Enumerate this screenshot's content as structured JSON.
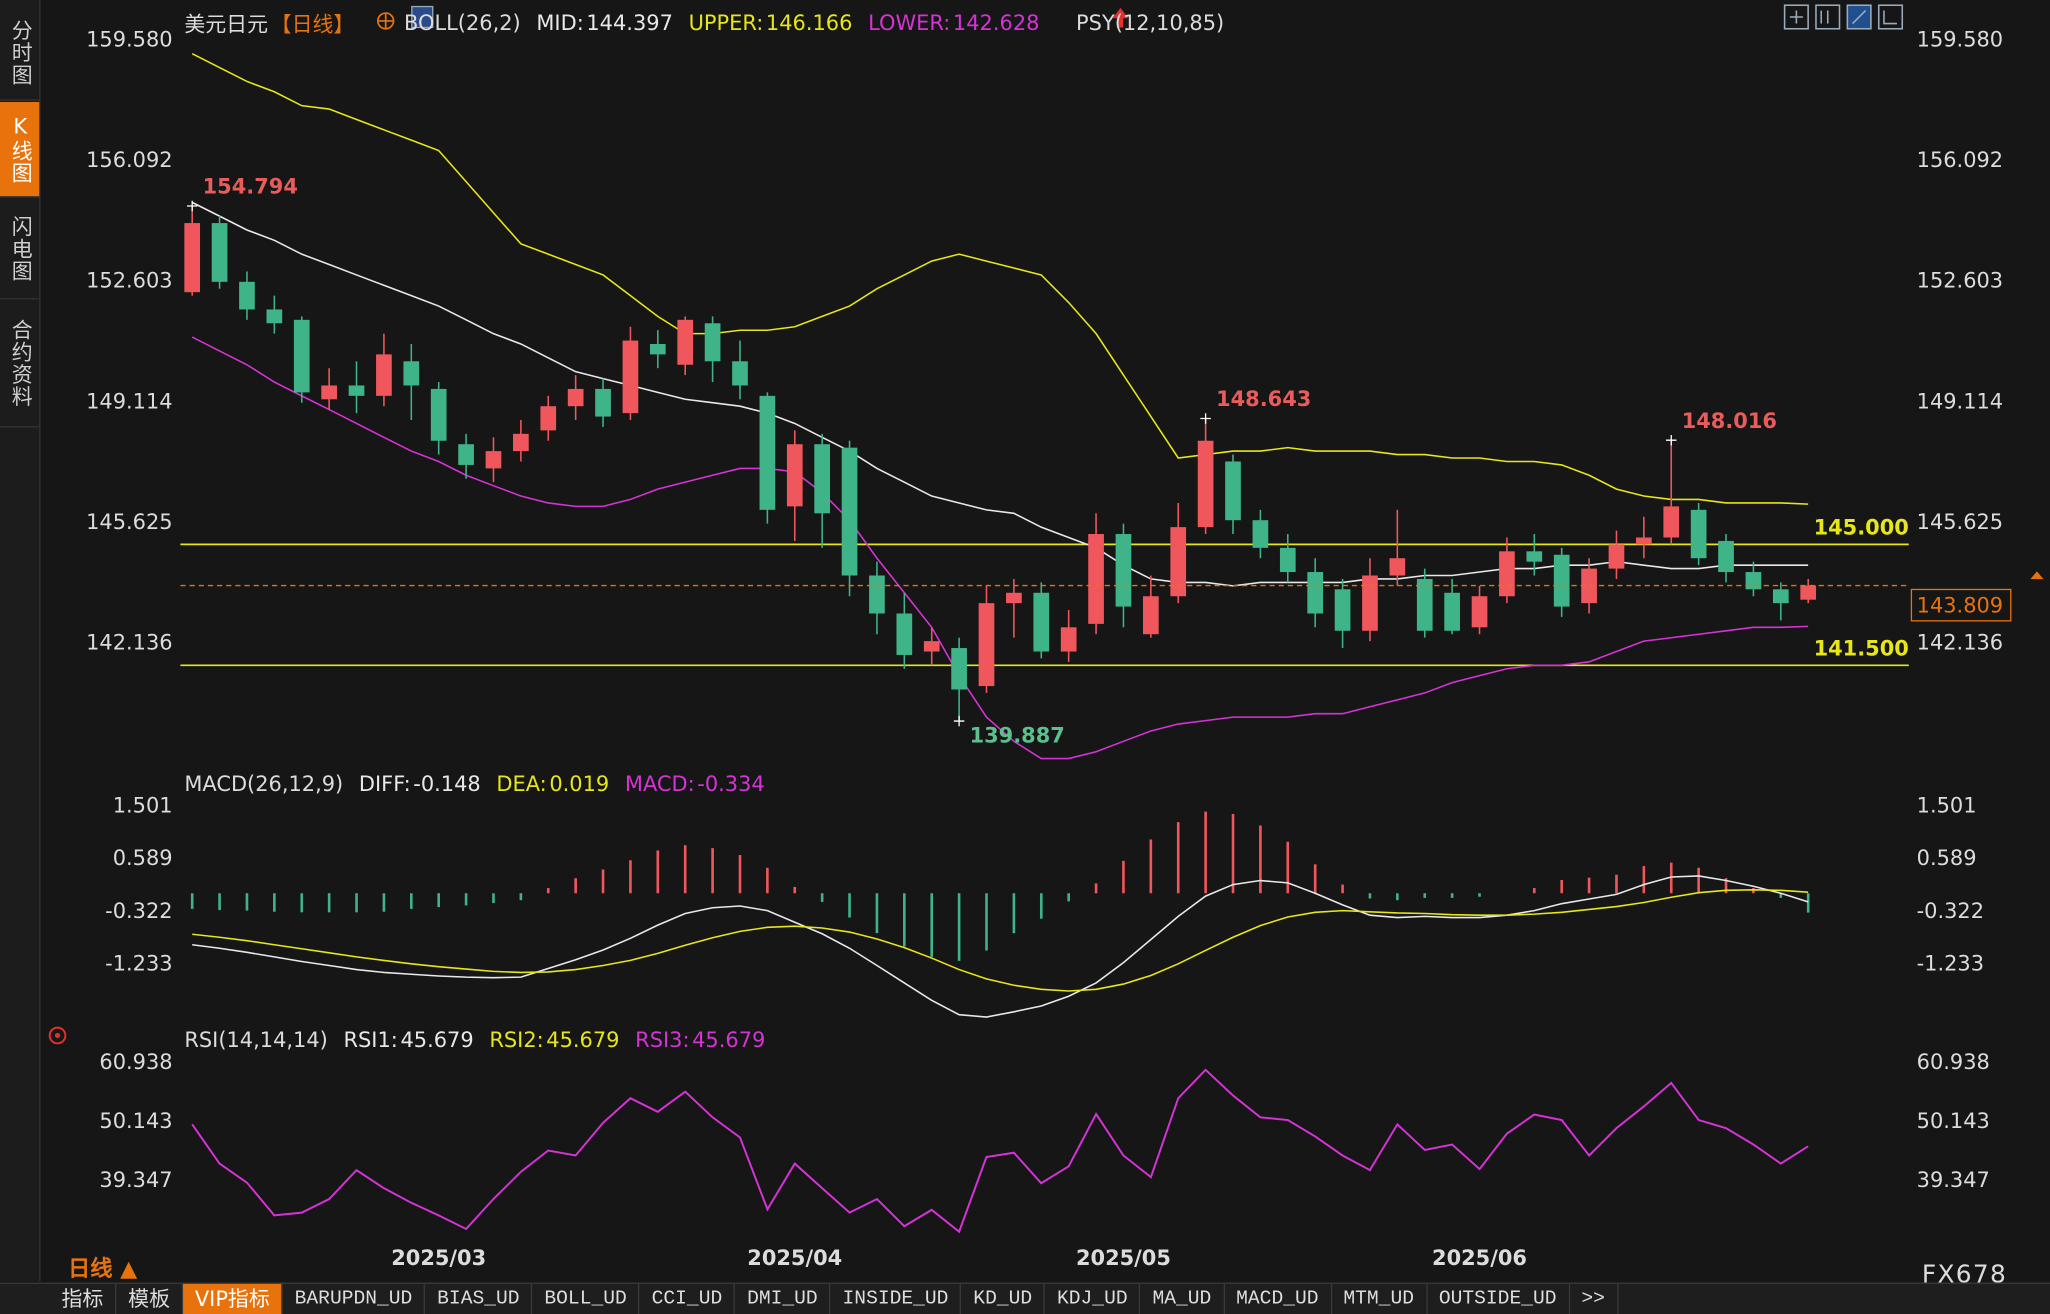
{
  "header": {
    "symbol": "美元日元",
    "period": "【日线】",
    "extra": "PSY(12,10,85)"
  },
  "sidebar": [
    "分时图",
    "K线图",
    "闪电图",
    "合约资料"
  ],
  "footer": {
    "period": "日线 ▲",
    "brand": "FX678",
    "tabs": [
      "指标",
      "模板",
      "VIP指标",
      "BARUPDN_UD",
      "BIAS_UD",
      "BOLL_UD",
      "CCI_UD",
      "DMI_UD",
      "INSIDE_UD",
      "KD_UD",
      "KDJ_UD",
      "MA_UD",
      "MACD_UD",
      "MTM_UD",
      "OUTSIDE_UD",
      ">>"
    ]
  },
  "chart_data": [
    {
      "type": "candlestick",
      "title": "BOLL(26,2)",
      "up_color": "#f0575c",
      "down_color": "#3fb489",
      "categories": [
        null,
        null,
        null,
        null,
        null,
        null,
        null,
        null,
        null,
        "2025/03",
        null,
        null,
        null,
        null,
        null,
        null,
        null,
        null,
        null,
        null,
        null,
        null,
        "2025/04",
        null,
        null,
        null,
        null,
        null,
        null,
        null,
        null,
        null,
        null,
        null,
        "2025/05",
        null,
        null,
        null,
        null,
        null,
        null,
        null,
        null,
        null,
        null,
        null,
        null,
        "2025/06",
        null,
        null,
        null,
        null,
        null,
        null,
        null,
        null,
        null,
        null,
        null,
        null
      ],
      "open": [
        152.3,
        154.3,
        152.6,
        151.8,
        151.5,
        149.2,
        149.6,
        149.3,
        150.3,
        149.5,
        147.9,
        147.2,
        147.7,
        148.3,
        149.0,
        149.5,
        148.8,
        150.8,
        150.2,
        151.4,
        150.3,
        149.3,
        146.1,
        147.9,
        147.8,
        144.1,
        143.0,
        141.9,
        142.0,
        140.9,
        143.3,
        143.6,
        141.9,
        142.7,
        145.3,
        142.4,
        143.5,
        145.5,
        147.4,
        145.7,
        144.9,
        144.2,
        143.7,
        142.5,
        144.1,
        144.0,
        143.6,
        142.6,
        143.5,
        144.8,
        144.7,
        143.3,
        144.3,
        145.0,
        145.2,
        146.0,
        145.1,
        144.2,
        143.7,
        143.4
      ],
      "high": [
        154.794,
        154.5,
        152.9,
        152.2,
        151.6,
        150.1,
        150.3,
        151.1,
        150.8,
        149.7,
        148.2,
        148.1,
        148.6,
        149.3,
        149.9,
        149.8,
        151.3,
        151.2,
        151.6,
        151.6,
        150.9,
        149.4,
        148.3,
        148.2,
        148.0,
        144.5,
        143.6,
        142.6,
        142.3,
        143.8,
        144.0,
        143.9,
        143.1,
        145.9,
        145.6,
        144.1,
        146.2,
        148.643,
        147.6,
        146.0,
        145.3,
        144.6,
        144.0,
        144.6,
        146.0,
        144.3,
        144.0,
        143.8,
        145.2,
        145.3,
        144.9,
        144.6,
        145.4,
        145.8,
        148.016,
        146.2,
        145.3,
        144.5,
        143.9,
        144.0
      ],
      "low": [
        152.2,
        152.4,
        151.5,
        151.1,
        149.1,
        148.9,
        148.8,
        149.0,
        148.6,
        147.6,
        146.9,
        146.8,
        147.4,
        148.0,
        148.6,
        148.4,
        148.6,
        150.1,
        149.9,
        149.7,
        149.2,
        145.6,
        145.1,
        144.9,
        143.5,
        142.4,
        141.4,
        141.5,
        139.887,
        140.7,
        142.3,
        141.7,
        141.6,
        142.4,
        142.6,
        142.3,
        143.3,
        145.3,
        145.3,
        144.6,
        143.9,
        142.6,
        142.0,
        142.2,
        143.8,
        142.3,
        142.4,
        142.4,
        143.3,
        144.1,
        142.9,
        143.0,
        144.0,
        144.6,
        145.0,
        144.4,
        143.9,
        143.5,
        142.8,
        143.3
      ],
      "close": [
        154.3,
        152.6,
        151.8,
        151.4,
        149.4,
        149.6,
        149.3,
        150.5,
        149.6,
        148.0,
        147.3,
        147.7,
        148.2,
        149.0,
        149.5,
        148.7,
        150.9,
        150.5,
        151.5,
        150.3,
        149.6,
        146.0,
        147.9,
        145.9,
        144.1,
        143.0,
        141.8,
        142.2,
        140.8,
        143.3,
        143.6,
        141.9,
        142.6,
        145.3,
        143.2,
        143.5,
        145.5,
        148.0,
        145.7,
        144.9,
        144.2,
        143.0,
        142.5,
        144.1,
        144.6,
        142.5,
        142.5,
        143.5,
        144.8,
        144.5,
        143.2,
        144.3,
        145.0,
        145.2,
        146.1,
        144.6,
        144.2,
        143.7,
        143.3,
        143.809
      ],
      "series": [
        {
          "name": "MID:",
          "color": "#e8e8e8",
          "values": [
            154.9,
            154.5,
            154.1,
            153.8,
            153.4,
            153.1,
            152.8,
            152.5,
            152.2,
            151.9,
            151.5,
            151.1,
            150.8,
            150.4,
            150.0,
            149.8,
            149.6,
            149.4,
            149.2,
            149.1,
            149.0,
            148.8,
            148.5,
            148.1,
            147.7,
            147.2,
            146.8,
            146.4,
            146.2,
            146.0,
            145.9,
            145.5,
            145.2,
            144.9,
            144.4,
            144.0,
            143.9,
            143.9,
            143.8,
            143.9,
            143.9,
            143.9,
            143.9,
            144.0,
            144.0,
            144.1,
            144.1,
            144.2,
            144.3,
            144.3,
            144.4,
            144.4,
            144.5,
            144.4,
            144.3,
            144.3,
            144.4,
            144.4,
            144.4,
            144.397
          ]
        },
        {
          "name": "UPPER:",
          "color": "#e6e619",
          "values": [
            159.2,
            158.8,
            158.4,
            158.1,
            157.7,
            157.6,
            157.3,
            157.0,
            156.7,
            156.4,
            155.5,
            154.6,
            153.7,
            153.4,
            153.1,
            152.8,
            152.2,
            151.6,
            151.1,
            151.1,
            151.2,
            151.2,
            151.3,
            151.6,
            151.9,
            152.4,
            152.8,
            153.2,
            153.4,
            153.2,
            153.0,
            152.8,
            152.0,
            151.1,
            149.9,
            148.7,
            147.5,
            147.6,
            147.7,
            147.7,
            147.8,
            147.7,
            147.7,
            147.7,
            147.6,
            147.6,
            147.5,
            147.5,
            147.4,
            147.4,
            147.3,
            147.0,
            146.6,
            146.4,
            146.3,
            146.3,
            146.2,
            146.2,
            146.2,
            146.166
          ]
        },
        {
          "name": "LOWER:",
          "color": "#d633d6",
          "values": [
            151.0,
            150.6,
            150.2,
            149.7,
            149.3,
            148.9,
            148.5,
            148.1,
            147.7,
            147.4,
            147.0,
            146.7,
            146.4,
            146.2,
            146.1,
            146.1,
            146.3,
            146.6,
            146.8,
            147.0,
            147.2,
            147.2,
            147.1,
            146.5,
            145.7,
            144.6,
            143.6,
            142.6,
            141.2,
            140.0,
            139.3,
            138.8,
            138.8,
            139.0,
            139.3,
            139.6,
            139.8,
            139.9,
            140.0,
            140.0,
            140.0,
            140.1,
            140.1,
            140.3,
            140.5,
            140.7,
            141.0,
            141.2,
            141.4,
            141.5,
            141.5,
            141.6,
            141.9,
            142.2,
            142.3,
            142.4,
            142.5,
            142.6,
            142.6,
            142.628
          ]
        }
      ],
      "annotations": [
        154.794,
        148.643,
        148.016,
        139.887
      ],
      "hlines": [
        {
          "value": 145,
          "label": "145.000"
        },
        {
          "value": 141.5,
          "label": "141.500"
        }
      ],
      "ylim": [
        138.62,
        160.0
      ],
      "yticks": [
        {
          "value": 159.58,
          "label": "159.580"
        },
        156.092,
        152.603,
        149.114,
        145.625,
        142.136
      ]
    },
    {
      "type": "macd",
      "title": "MACD(26,12,9)",
      "up_color": "#f0575c",
      "down_color": "#3fb489",
      "series": [
        {
          "name": "DIFF:",
          "color": "#e8e8e8",
          "values": [
            -0.89,
            -0.95,
            -1.02,
            -1.1,
            -1.18,
            -1.25,
            -1.32,
            -1.37,
            -1.4,
            -1.43,
            -1.45,
            -1.46,
            -1.45,
            -1.3,
            -1.15,
            -0.98,
            -0.78,
            -0.55,
            -0.35,
            -0.25,
            -0.22,
            -0.3,
            -0.5,
            -0.7,
            -0.95,
            -1.25,
            -1.55,
            -1.85,
            -2.1,
            -2.14,
            -2.05,
            -1.95,
            -1.78,
            -1.55,
            -1.2,
            -0.8,
            -0.4,
            -0.05,
            0.15,
            0.22,
            0.18,
            0.0,
            -0.2,
            -0.38,
            -0.42,
            -0.4,
            -0.42,
            -0.42,
            -0.38,
            -0.3,
            -0.18,
            -0.1,
            -0.02,
            0.15,
            0.28,
            0.3,
            0.22,
            0.12,
            0.0,
            -0.148
          ]
        },
        {
          "name": "DEA:",
          "color": "#e6e619",
          "values": [
            -0.71,
            -0.76,
            -0.82,
            -0.89,
            -0.96,
            -1.03,
            -1.1,
            -1.16,
            -1.22,
            -1.27,
            -1.31,
            -1.35,
            -1.37,
            -1.36,
            -1.32,
            -1.25,
            -1.16,
            -1.04,
            -0.9,
            -0.77,
            -0.66,
            -0.59,
            -0.57,
            -0.6,
            -0.67,
            -0.79,
            -0.94,
            -1.12,
            -1.32,
            -1.48,
            -1.59,
            -1.66,
            -1.69,
            -1.66,
            -1.57,
            -1.42,
            -1.22,
            -0.99,
            -0.76,
            -0.56,
            -0.41,
            -0.33,
            -0.3,
            -0.32,
            -0.34,
            -0.35,
            -0.37,
            -0.38,
            -0.38,
            -0.36,
            -0.33,
            -0.28,
            -0.23,
            -0.16,
            -0.07,
            0.01,
            0.05,
            0.06,
            0.05,
            0.019
          ]
        },
        {
          "name": "MACD:",
          "color": "#d633d6",
          "values": [
            -0.27,
            -0.29,
            -0.3,
            -0.32,
            -0.33,
            -0.33,
            -0.33,
            -0.32,
            -0.27,
            -0.24,
            -0.21,
            -0.17,
            -0.12,
            0.09,
            0.26,
            0.41,
            0.57,
            0.74,
            0.83,
            0.78,
            0.66,
            0.44,
            0.11,
            -0.15,
            -0.42,
            -0.69,
            -0.92,
            -1.1,
            -1.17,
            -0.99,
            -0.69,
            -0.44,
            -0.14,
            0.17,
            0.56,
            0.93,
            1.23,
            1.41,
            1.37,
            1.17,
            0.89,
            0.5,
            0.15,
            -0.09,
            -0.12,
            -0.08,
            -0.08,
            -0.06,
            0.0,
            0.09,
            0.23,
            0.27,
            0.32,
            0.47,
            0.53,
            0.44,
            0.26,
            0.09,
            -0.08,
            -0.334
          ]
        }
      ],
      "ylim": [
        -2.3,
        1.7
      ],
      "yticks": [
        1.501,
        0.589,
        -0.322,
        -1.233
      ]
    },
    {
      "type": "line",
      "title": "RSI(14,14,14)",
      "color": "#d633d6",
      "values": [
        49.7,
        42.5,
        39.0,
        33.0,
        33.5,
        36.0,
        41.3,
        38.0,
        35.3,
        33.0,
        30.5,
        36.0,
        41.0,
        44.9,
        44.0,
        50.0,
        54.5,
        52.0,
        55.7,
        51.0,
        47.3,
        34.1,
        42.5,
        38.0,
        33.5,
        36.0,
        31.0,
        34.0,
        30.0,
        43.7,
        44.5,
        38.9,
        42.0,
        51.6,
        44.0,
        40.0,
        54.5,
        59.7,
        55.0,
        51.0,
        50.5,
        47.5,
        44.0,
        41.3,
        49.7,
        45.0,
        46.0,
        41.5,
        48.0,
        51.5,
        50.5,
        44.0,
        49.0,
        53.0,
        57.3,
        50.5,
        49.0,
        46.0,
        42.5,
        45.679
      ],
      "legend": [
        {
          "name": "RSI1:",
          "value": 45.679,
          "color": "#e8e8e8"
        },
        {
          "name": "RSI2:",
          "value": 45.679,
          "color": "#e6e619"
        },
        {
          "name": "RSI3:",
          "value": 45.679,
          "color": "#d633d6"
        }
      ],
      "ylim": [
        26.9,
        62.9
      ],
      "yticks": [
        60.938,
        50.143,
        39.347
      ]
    }
  ]
}
